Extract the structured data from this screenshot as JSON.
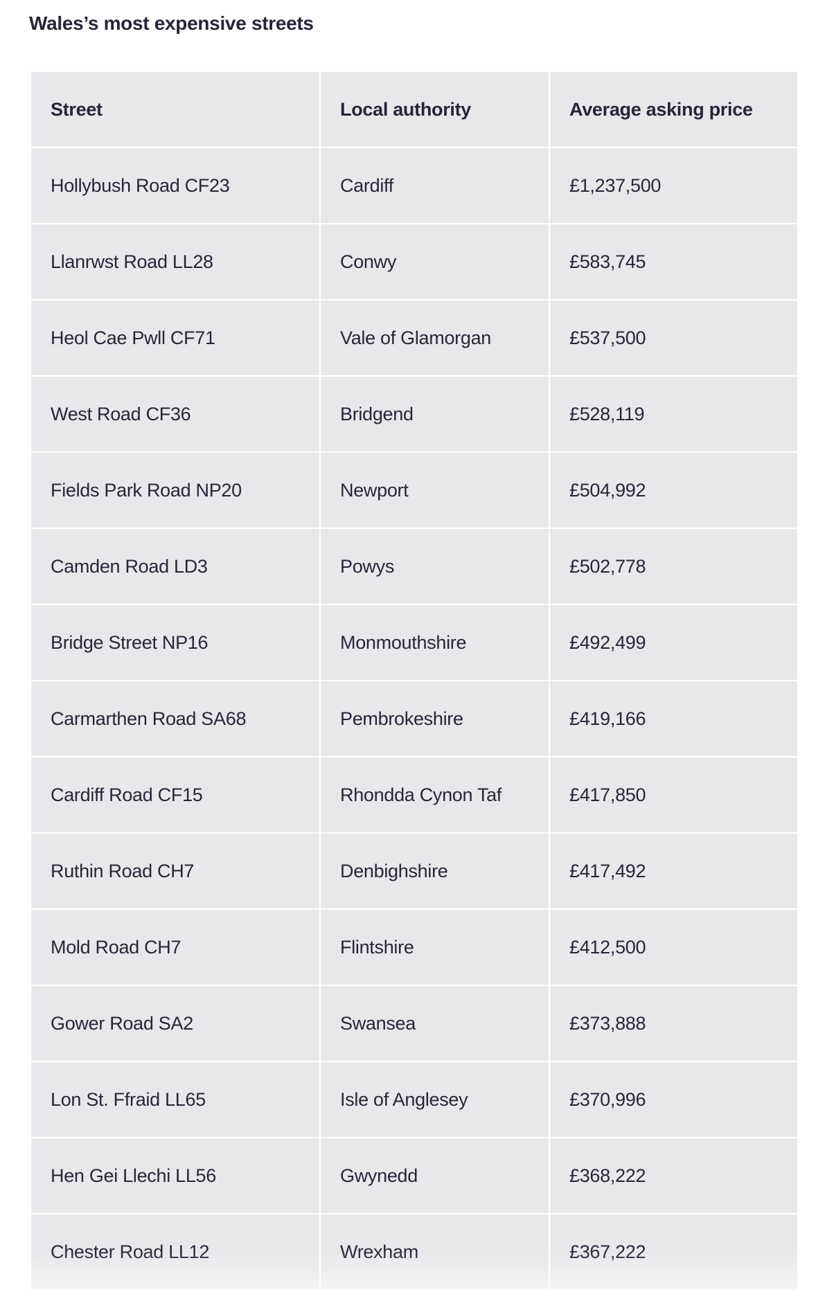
{
  "title": "Wales’s most expensive streets",
  "table": {
    "headers": [
      "Street",
      "Local authority",
      "Average asking price"
    ],
    "rows": [
      [
        "Hollybush Road CF23",
        "Cardiff",
        "£1,237,500"
      ],
      [
        "Llanrwst Road LL28",
        "Conwy",
        "£583,745"
      ],
      [
        "Heol Cae Pwll CF71",
        "Vale of Glamorgan",
        "£537,500"
      ],
      [
        "West Road CF36",
        "Bridgend",
        "£528,119"
      ],
      [
        "Fields Park Road NP20",
        "Newport",
        "£504,992"
      ],
      [
        "Camden Road LD3",
        "Powys",
        "£502,778"
      ],
      [
        "Bridge Street NP16",
        "Monmouthshire",
        "£492,499"
      ],
      [
        "Carmarthen Road SA68",
        "Pembrokeshire",
        "£419,166"
      ],
      [
        "Cardiff Road CF15",
        "Rhondda Cynon Taf",
        "£417,850"
      ],
      [
        "Ruthin Road CH7",
        "Denbighshire",
        "£417,492"
      ],
      [
        "Mold Road CH7",
        "Flintshire",
        "£412,500"
      ],
      [
        "Gower Road SA2",
        "Swansea",
        "£373,888"
      ],
      [
        "Lon St. Ffraid LL65",
        "Isle of Anglesey",
        "£370,996"
      ],
      [
        "Hen Gei Llechi LL56",
        "Gwynedd",
        "£368,222"
      ],
      [
        "Chester Road LL12",
        "Wrexham",
        "£367,222"
      ]
    ]
  }
}
